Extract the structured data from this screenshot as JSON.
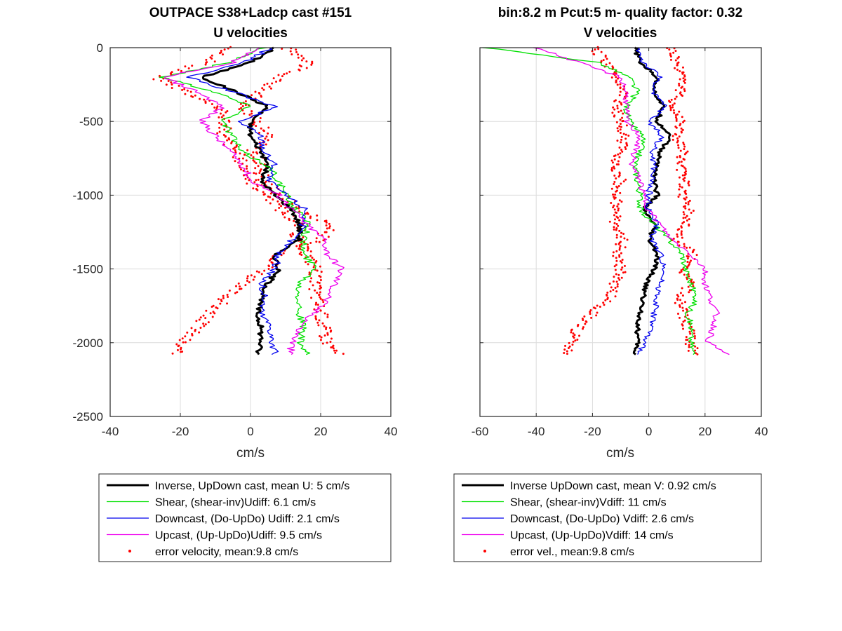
{
  "chart_data": [
    {
      "type": "line",
      "title_line1": "OUTPACE S38+Ladcp cast #151",
      "title_line2": "U velocities",
      "xlabel": "cm/s",
      "ylabel": "",
      "xlim": [
        -40,
        40
      ],
      "ylim": [
        -2500,
        0
      ],
      "xticks": [
        -40,
        -20,
        0,
        20,
        40
      ],
      "yticks": [
        0,
        -500,
        -1000,
        -1500,
        -2000,
        -2500
      ],
      "grid": true,
      "legend_position": "below",
      "depth": [
        0,
        -100,
        -200,
        -300,
        -400,
        -500,
        -600,
        -700,
        -800,
        -900,
        -1000,
        -1100,
        -1200,
        -1300,
        -1400,
        -1500,
        -1600,
        -1700,
        -1800,
        -1900,
        -2000,
        -2080
      ],
      "series": [
        {
          "name": "Inverse, UpDown cast, mean U:  5 cm/s",
          "color": "#000000",
          "width": 3,
          "values": [
            7,
            0,
            -14,
            -4,
            5,
            0,
            0,
            3,
            5,
            3,
            7,
            12,
            14,
            14,
            7,
            8,
            5,
            3,
            2,
            3,
            3,
            2
          ]
        },
        {
          "name": "Shear, (shear-inv)Udiff:  6.1 cm/s",
          "color": "#00e000",
          "width": 1.3,
          "values": [
            4,
            -6,
            -25,
            -10,
            0,
            -8,
            -5,
            -3,
            5,
            8,
            10,
            13,
            17,
            15,
            15,
            19,
            14,
            14,
            14,
            15,
            14,
            16
          ]
        },
        {
          "name": "Downcast, (Do-UpDo) Udiff:  2.1 cm/s",
          "color": "#0000ee",
          "width": 1.3,
          "values": [
            6,
            -2,
            -18,
            -5,
            7,
            -3,
            3,
            4,
            7,
            5,
            10,
            16,
            15,
            12,
            8,
            7,
            3,
            4,
            3,
            6,
            6,
            7
          ]
        },
        {
          "name": "Upcast, (Up-UpDo)Udiff:  9.5 cm/s",
          "color": "#ee00ee",
          "width": 1.3,
          "values": [
            2,
            -5,
            -25,
            -15,
            -8,
            -14,
            -10,
            -6,
            -2,
            0,
            8,
            12,
            16,
            21,
            22,
            26,
            24,
            22,
            18,
            14,
            12,
            11
          ]
        }
      ],
      "error_series": {
        "name": "error velocity, mean:9.8 cm/s",
        "color": "#ff0000",
        "values": [
          10,
          18,
          8,
          3,
          -2,
          2,
          5,
          1,
          3,
          4,
          9,
          14,
          23,
          20,
          9,
          5,
          -3,
          -7,
          -12,
          -15,
          -20,
          -22
        ],
        "values_b": [
          -5,
          -12,
          -27,
          -18,
          -9,
          -7,
          -8,
          -4,
          -2,
          0,
          5,
          9,
          14,
          13,
          16,
          19,
          18,
          19,
          20,
          21,
          22,
          25
        ]
      }
    },
    {
      "type": "line",
      "title_line1": "bin:8.2 m  Pcut:5 m- quality factor:  0.32",
      "title_line2": "V velocities",
      "xlabel": "cm/s",
      "ylabel": "",
      "xlim": [
        -60,
        40
      ],
      "ylim": [
        -2500,
        0
      ],
      "xticks": [
        -60,
        -40,
        -20,
        0,
        20,
        40
      ],
      "yticks": [
        0,
        -500,
        -1000,
        -1500,
        -2000,
        -2500
      ],
      "grid": true,
      "legend_position": "below",
      "depth": [
        0,
        -100,
        -200,
        -300,
        -400,
        -500,
        -600,
        -700,
        -800,
        -900,
        -1000,
        -1100,
        -1200,
        -1300,
        -1400,
        -1500,
        -1600,
        -1700,
        -1800,
        -1900,
        -2000,
        -2080
      ],
      "series": [
        {
          "name": "Inverse UpDown cast, mean V:  0.92 cm/s",
          "color": "#000000",
          "width": 3,
          "values": [
            -5,
            -3,
            3,
            2,
            5,
            3,
            8,
            4,
            3,
            2,
            3,
            -2,
            2,
            0,
            3,
            2,
            -1,
            -2,
            -3,
            -4,
            -4,
            -5
          ]
        },
        {
          "name": "Shear, (shear-inv)Vdiff:  11 cm/s",
          "color": "#00e000",
          "width": 1.3,
          "values": [
            -58,
            -18,
            -7,
            -4,
            -8,
            -7,
            -2,
            -3,
            -5,
            -4,
            -3,
            -3,
            2,
            7,
            12,
            13,
            15,
            17,
            14,
            15,
            15,
            16
          ]
        },
        {
          "name": "Downcast, (Do-UpDo) Vdiff:  2.6 cm/s",
          "color": "#0000ee",
          "width": 1.3,
          "values": [
            -4,
            -2,
            4,
            1,
            6,
            0,
            5,
            1,
            2,
            1,
            0,
            0,
            3,
            1,
            4,
            6,
            4,
            3,
            2,
            1,
            -2,
            -3
          ]
        },
        {
          "name": "Upcast, (Up-UpDo)Vdiff:  14 cm/s",
          "color": "#ee00ee",
          "width": 1.3,
          "values": [
            -40,
            -25,
            -10,
            -8,
            -8,
            -8,
            -3,
            -5,
            -6,
            -3,
            -2,
            0,
            4,
            8,
            15,
            20,
            20,
            22,
            24,
            23,
            21,
            28
          ]
        }
      ],
      "error_series": {
        "name": "error vel., mean:9.8 cm/s",
        "color": "#ff0000",
        "values": [
          8,
          10,
          13,
          11,
          8,
          12,
          10,
          12,
          11,
          13,
          12,
          14,
          13,
          10,
          16,
          12,
          15,
          11,
          12,
          14,
          15,
          16
        ],
        "values_b": [
          -20,
          -15,
          -12,
          -8,
          -12,
          -10,
          -9,
          -10,
          -12,
          -10,
          -12,
          -11,
          -13,
          -9,
          -11,
          -10,
          -12,
          -14,
          -20,
          -25,
          -28,
          -30
        ]
      }
    }
  ]
}
